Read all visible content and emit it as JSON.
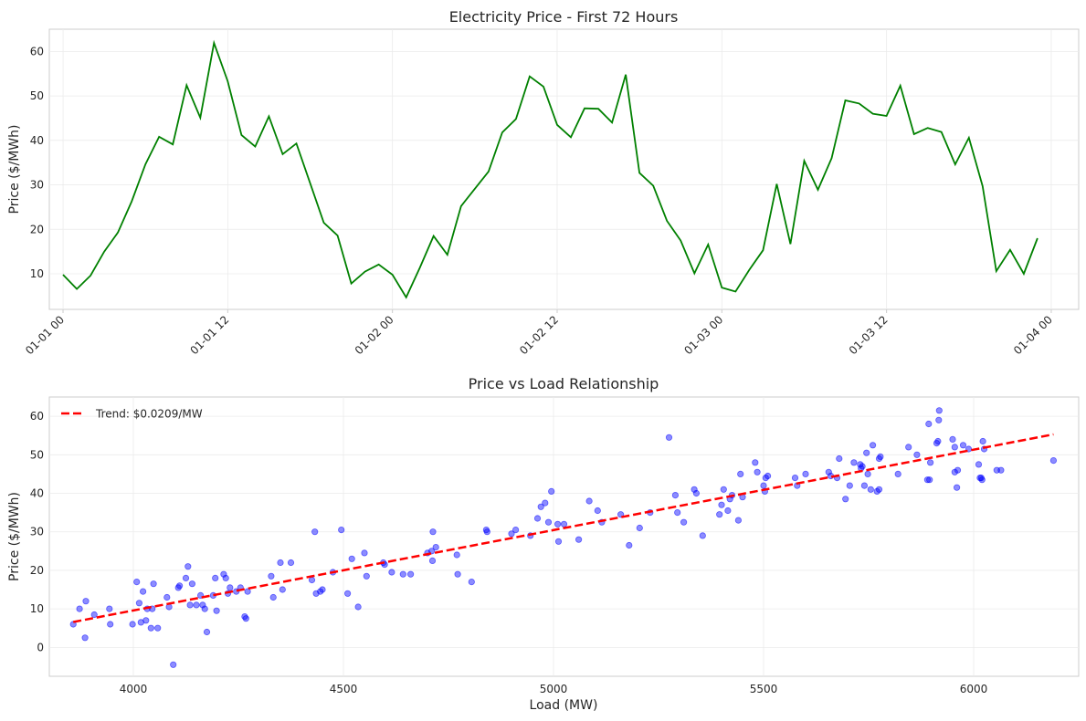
{
  "chart_data": [
    {
      "type": "line",
      "title": "Electricity Price - First 72 Hours",
      "xlabel": "",
      "ylabel": "Price ($/MWh)",
      "x_unit": "hour",
      "xlim": [
        "2018-12-31 23:00",
        "2019-01-04 00:00"
      ],
      "ylim": [
        2,
        65
      ],
      "x_ticks": [
        "01-01 00",
        "01-01 12",
        "01-02 00",
        "01-02 12",
        "01-03 00",
        "01-03 12",
        "01-04 00"
      ],
      "y_ticks": [
        10,
        20,
        30,
        40,
        50,
        60
      ],
      "grid": true,
      "color": "#008000",
      "series": [
        {
          "x_start": "01-01 00",
          "values": [
            9.8,
            6.6,
            9.6,
            15.0,
            19.3,
            26.3,
            34.6,
            40.8,
            39.1,
            52.4,
            45.1,
            61.9,
            53.3,
            41.2,
            38.6,
            45.4,
            36.9,
            39.3,
            30.4,
            21.5,
            18.6,
            7.8,
            10.5,
            12.1,
            9.8,
            4.7,
            11.4,
            18.5,
            14.3,
            25.2,
            29.1,
            33.0,
            41.8,
            44.8,
            54.4,
            52.1,
            43.5,
            40.7,
            47.2,
            47.1,
            44.0,
            54.8,
            32.7,
            29.8,
            21.9,
            17.5,
            10.1,
            16.6,
            6.9,
            6.0,
            10.9,
            15.3,
            30.2,
            16.7,
            35.4,
            28.9,
            36.0,
            49.0,
            48.3,
            46.0,
            45.5,
            52.3,
            41.4,
            42.8,
            41.9,
            34.6,
            40.6,
            29.7,
            10.6,
            15.4,
            10.0,
            18.0
          ]
        }
      ]
    },
    {
      "type": "scatter",
      "title": "Price vs Load Relationship",
      "xlabel": "Load (MW)",
      "ylabel": "Price ($/MWh)",
      "xlim": [
        3800,
        6250
      ],
      "ylim": [
        -7.5,
        65
      ],
      "x_ticks": [
        4000,
        4500,
        5000,
        5500,
        6000
      ],
      "y_ticks": [
        0,
        10,
        20,
        30,
        40,
        50,
        60
      ],
      "grid": true,
      "legend_position": "top-left",
      "point_color": "#0000ff",
      "points": [
        [
          3857,
          6.0
        ],
        [
          3872,
          10.0
        ],
        [
          3885,
          2.5
        ],
        [
          3887,
          12.0
        ],
        [
          3907,
          8.5
        ],
        [
          3943,
          10.0
        ],
        [
          3945,
          6.0
        ],
        [
          3998,
          6.0
        ],
        [
          4008,
          17.0
        ],
        [
          4014,
          11.5
        ],
        [
          4018,
          6.5
        ],
        [
          4023,
          14.5
        ],
        [
          4030,
          7.0
        ],
        [
          4033,
          10.0
        ],
        [
          4042,
          5.0
        ],
        [
          4045,
          10.0
        ],
        [
          4048,
          16.5
        ],
        [
          4058,
          5.0
        ],
        [
          4080,
          13.0
        ],
        [
          4085,
          10.5
        ],
        [
          4095,
          -4.5
        ],
        [
          4107,
          15.5
        ],
        [
          4110,
          16.0
        ],
        [
          4125,
          18.0
        ],
        [
          4130,
          21.0
        ],
        [
          4135,
          11.0
        ],
        [
          4140,
          16.5
        ],
        [
          4150,
          11.0
        ],
        [
          4160,
          13.5
        ],
        [
          4165,
          11.0
        ],
        [
          4170,
          10.0
        ],
        [
          4175,
          4.0
        ],
        [
          4190,
          13.5
        ],
        [
          4195,
          18.0
        ],
        [
          4198,
          9.5
        ],
        [
          4215,
          19.0
        ],
        [
          4220,
          18.0
        ],
        [
          4225,
          14.0
        ],
        [
          4230,
          15.5
        ],
        [
          4245,
          14.5
        ],
        [
          4255,
          15.5
        ],
        [
          4265,
          8.0
        ],
        [
          4268,
          7.5
        ],
        [
          4272,
          14.5
        ],
        [
          4328,
          18.5
        ],
        [
          4333,
          13.0
        ],
        [
          4350,
          22.0
        ],
        [
          4355,
          15.0
        ],
        [
          4375,
          22.0
        ],
        [
          4425,
          17.5
        ],
        [
          4432,
          30.0
        ],
        [
          4435,
          14.0
        ],
        [
          4445,
          14.5
        ],
        [
          4450,
          15.0
        ],
        [
          4475,
          19.5
        ],
        [
          4495,
          30.5
        ],
        [
          4510,
          14.0
        ],
        [
          4520,
          23.0
        ],
        [
          4535,
          10.5
        ],
        [
          4550,
          24.5
        ],
        [
          4555,
          18.5
        ],
        [
          4595,
          22.0
        ],
        [
          4598,
          21.5
        ],
        [
          4615,
          19.5
        ],
        [
          4642,
          19.0
        ],
        [
          4660,
          19.0
        ],
        [
          4700,
          24.5
        ],
        [
          4710,
          25.0
        ],
        [
          4712,
          22.5
        ],
        [
          4713,
          30.0
        ],
        [
          4720,
          26.0
        ],
        [
          4770,
          24.0
        ],
        [
          4772,
          19.0
        ],
        [
          4805,
          17.0
        ],
        [
          4840,
          30.5
        ],
        [
          4842,
          30.0
        ],
        [
          4900,
          29.5
        ],
        [
          4910,
          30.5
        ],
        [
          4945,
          29.0
        ],
        [
          4962,
          33.5
        ],
        [
          4970,
          36.5
        ],
        [
          4980,
          37.5
        ],
        [
          4988,
          32.5
        ],
        [
          4995,
          40.5
        ],
        [
          5010,
          32.0
        ],
        [
          5012,
          27.5
        ],
        [
          5025,
          32.0
        ],
        [
          5060,
          28.0
        ],
        [
          5085,
          38.0
        ],
        [
          5105,
          35.5
        ],
        [
          5115,
          32.5
        ],
        [
          5160,
          34.5
        ],
        [
          5180,
          26.5
        ],
        [
          5205,
          31.0
        ],
        [
          5230,
          35.0
        ],
        [
          5275,
          54.5
        ],
        [
          5290,
          39.5
        ],
        [
          5295,
          35.0
        ],
        [
          5310,
          32.5
        ],
        [
          5335,
          41.0
        ],
        [
          5340,
          40.0
        ],
        [
          5355,
          29.0
        ],
        [
          5395,
          34.5
        ],
        [
          5400,
          37.0
        ],
        [
          5405,
          41.0
        ],
        [
          5415,
          35.5
        ],
        [
          5420,
          38.5
        ],
        [
          5425,
          39.5
        ],
        [
          5440,
          33.0
        ],
        [
          5445,
          45.0
        ],
        [
          5450,
          39.0
        ],
        [
          5480,
          48.0
        ],
        [
          5485,
          45.5
        ],
        [
          5500,
          42.0
        ],
        [
          5503,
          40.5
        ],
        [
          5505,
          44.0
        ],
        [
          5510,
          44.5
        ],
        [
          5575,
          44.0
        ],
        [
          5580,
          42.0
        ],
        [
          5600,
          45.0
        ],
        [
          5655,
          45.5
        ],
        [
          5660,
          44.5
        ],
        [
          5675,
          44.0
        ],
        [
          5680,
          49.0
        ],
        [
          5695,
          38.5
        ],
        [
          5705,
          42.0
        ],
        [
          5715,
          48.0
        ],
        [
          5730,
          47.5
        ],
        [
          5732,
          46.5
        ],
        [
          5735,
          47.0
        ],
        [
          5740,
          42.0
        ],
        [
          5745,
          50.5
        ],
        [
          5748,
          45.0
        ],
        [
          5755,
          41.0
        ],
        [
          5760,
          52.5
        ],
        [
          5770,
          40.5
        ],
        [
          5775,
          41.0
        ],
        [
          5775,
          49.0
        ],
        [
          5778,
          49.5
        ],
        [
          5820,
          45.0
        ],
        [
          5845,
          52.0
        ],
        [
          5865,
          50.0
        ],
        [
          5890,
          43.5
        ],
        [
          5893,
          58.0
        ],
        [
          5895,
          43.5
        ],
        [
          5897,
          48.0
        ],
        [
          5912,
          53.0
        ],
        [
          5915,
          53.5
        ],
        [
          5917,
          59.0
        ],
        [
          5918,
          61.5
        ],
        [
          5950,
          54.0
        ],
        [
          5955,
          52.0
        ],
        [
          5955,
          45.5
        ],
        [
          5960,
          41.5
        ],
        [
          5962,
          46.0
        ],
        [
          5975,
          52.5
        ],
        [
          5988,
          51.5
        ],
        [
          6012,
          47.5
        ],
        [
          6015,
          44.0
        ],
        [
          6018,
          44.0
        ],
        [
          6020,
          43.5
        ],
        [
          6022,
          53.5
        ],
        [
          6025,
          51.5
        ],
        [
          6055,
          46.0
        ],
        [
          6065,
          46.0
        ],
        [
          6190,
          48.5
        ]
      ],
      "trend": {
        "name": "Trend: $0.0209/MW",
        "color": "#ff0000",
        "x": [
          3857,
          6190
        ],
        "y": [
          6.6,
          55.3
        ]
      }
    }
  ]
}
